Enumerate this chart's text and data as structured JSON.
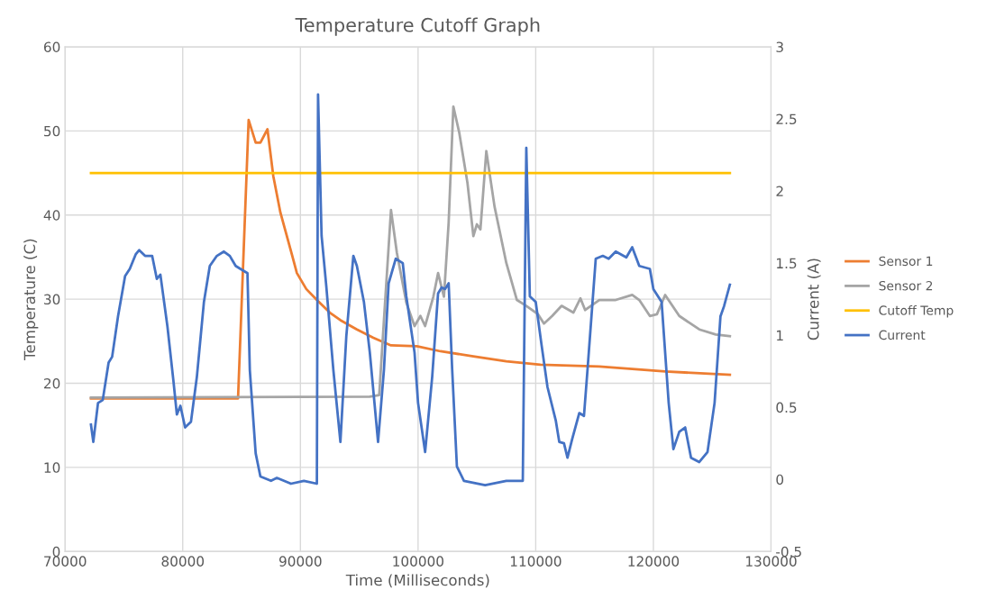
{
  "chart_data": {
    "type": "line",
    "title": "Temperature Cutoff Graph",
    "xlabel": "Time (Milliseconds)",
    "ylabel": "Temperature (C)",
    "y2label": "Current (A)",
    "xlim": [
      70000,
      130000
    ],
    "xticks": [
      70000,
      80000,
      90000,
      100000,
      110000,
      120000,
      130000
    ],
    "ylim": [
      0,
      60
    ],
    "yticks": [
      0,
      10,
      20,
      30,
      40,
      50,
      60
    ],
    "y2lim": [
      -0.5,
      3
    ],
    "y2ticks": [
      -0.5,
      0,
      0.5,
      1,
      1.5,
      2,
      2.5,
      3
    ],
    "grid": true,
    "legend": "right",
    "marker": "none",
    "line_style": "solid",
    "series": [
      {
        "name": "Sensor 1",
        "color": "#ed7d31",
        "x": [
          72200,
          84700,
          85600,
          86200,
          86600,
          87200,
          87700,
          88300,
          89300,
          89700,
          90500,
          91400,
          92500,
          93400,
          94800,
          96200,
          97700,
          99900,
          101900,
          104700,
          107500,
          110400,
          115400,
          121000,
          126500
        ],
        "values": [
          18.2,
          18.2,
          51.3,
          48.6,
          48.6,
          50.2,
          44.6,
          40.3,
          35.2,
          33.1,
          31.2,
          29.9,
          28.4,
          27.5,
          26.4,
          25.4,
          24.5,
          24.4,
          23.8,
          23.2,
          22.6,
          22.2,
          22.0,
          21.4,
          21.0
        ]
      },
      {
        "name": "Sensor 2",
        "color": "#a5a5a5",
        "x": [
          72200,
          95900,
          96700,
          97100,
          97700,
          98200,
          99000,
          99700,
          100200,
          100600,
          101300,
          101700,
          102200,
          102600,
          103000,
          103500,
          104200,
          104700,
          105000,
          105300,
          105800,
          106500,
          107500,
          108400,
          109200,
          110200,
          110700,
          111400,
          112200,
          113200,
          113800,
          114200,
          115400,
          116800,
          118200,
          118800,
          119700,
          120300,
          121000,
          122200,
          123900,
          125300,
          126500
        ],
        "values": [
          18.3,
          18.4,
          18.6,
          27.5,
          40.6,
          35.5,
          29.6,
          26.8,
          28.0,
          26.8,
          30.3,
          33.1,
          30.3,
          39.1,
          52.9,
          49.8,
          43.8,
          37.5,
          38.9,
          38.3,
          47.6,
          41.0,
          34.3,
          29.9,
          29.2,
          28.2,
          27.1,
          28.0,
          29.2,
          28.4,
          30.1,
          28.7,
          29.9,
          29.9,
          30.5,
          29.9,
          28.0,
          28.2,
          30.5,
          28.0,
          26.4,
          25.8,
          25.6
        ]
      },
      {
        "name": "Cutoff Temp",
        "color": "#ffc000",
        "x": [
          72200,
          126500
        ],
        "values": [
          45,
          45
        ]
      },
      {
        "name": "Current",
        "color": "#4472c4",
        "axis": "y2",
        "x": [
          72200,
          72400,
          72800,
          73200,
          73700,
          74000,
          74500,
          75100,
          75500,
          76000,
          76300,
          76800,
          77400,
          77800,
          78100,
          78700,
          79200,
          79500,
          79800,
          80200,
          80700,
          81200,
          81800,
          82300,
          82900,
          83500,
          84000,
          84500,
          84900,
          85500,
          85700,
          86200,
          86600,
          87500,
          88000,
          89200,
          90300,
          91400,
          91500,
          91800,
          92200,
          92800,
          93400,
          93900,
          94500,
          94800,
          95400,
          95900,
          96600,
          97100,
          97500,
          98100,
          98700,
          99000,
          99700,
          100000,
          100600,
          101200,
          101700,
          102000,
          102300,
          102600,
          102900,
          103300,
          103900,
          105700,
          107500,
          108900,
          109200,
          109500,
          110000,
          110500,
          111000,
          111700,
          112000,
          112400,
          112700,
          113100,
          113700,
          114100,
          114400,
          115100,
          115700,
          116200,
          116800,
          117700,
          118200,
          118800,
          119700,
          120000,
          120700,
          121300,
          121700,
          122200,
          122700,
          123200,
          123900,
          124600,
          125200,
          125700,
          126000,
          126500
        ],
        "values": [
          0.38,
          0.26,
          0.53,
          0.55,
          0.81,
          0.85,
          1.13,
          1.41,
          1.46,
          1.56,
          1.59,
          1.55,
          1.55,
          1.39,
          1.42,
          1.06,
          0.69,
          0.45,
          0.51,
          0.36,
          0.4,
          0.71,
          1.23,
          1.48,
          1.55,
          1.58,
          1.55,
          1.48,
          1.46,
          1.43,
          0.76,
          0.18,
          0.02,
          -0.01,
          0.01,
          -0.03,
          -0.01,
          -0.03,
          2.67,
          1.69,
          1.34,
          0.76,
          0.26,
          0.99,
          1.55,
          1.48,
          1.23,
          0.88,
          0.26,
          0.76,
          1.36,
          1.53,
          1.5,
          1.27,
          0.88,
          0.53,
          0.19,
          0.71,
          1.29,
          1.33,
          1.32,
          1.36,
          0.76,
          0.09,
          -0.01,
          -0.04,
          -0.01,
          -0.01,
          2.3,
          1.27,
          1.23,
          0.93,
          0.64,
          0.41,
          0.26,
          0.25,
          0.15,
          0.28,
          0.46,
          0.44,
          0.76,
          1.53,
          1.55,
          1.53,
          1.58,
          1.54,
          1.61,
          1.48,
          1.46,
          1.32,
          1.23,
          0.53,
          0.21,
          0.33,
          0.36,
          0.15,
          0.12,
          0.19,
          0.53,
          1.13,
          1.2,
          1.35
        ]
      }
    ]
  }
}
